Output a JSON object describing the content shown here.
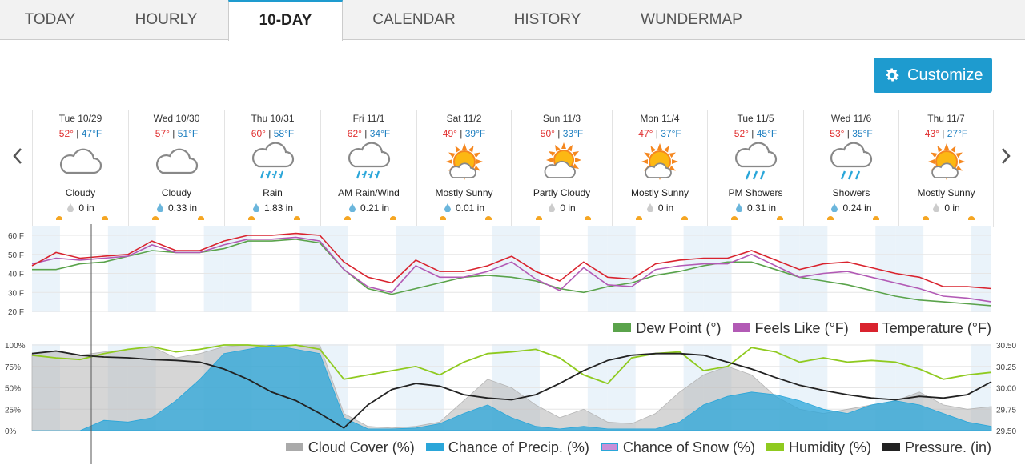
{
  "tabs": [
    {
      "label": "TODAY"
    },
    {
      "label": "HOURLY"
    },
    {
      "label": "10-DAY"
    },
    {
      "label": "CALENDAR"
    },
    {
      "label": "HISTORY"
    },
    {
      "label": "WUNDERMAP"
    }
  ],
  "active_tab": "10-DAY",
  "customize_label": "Customize",
  "days": [
    {
      "date": "Tue 10/29",
      "hi": "52°",
      "lo": "47°F",
      "icon": "cloudy-icon",
      "cond": "Cloudy",
      "precip": "0 in"
    },
    {
      "date": "Wed 10/30",
      "hi": "57°",
      "lo": "51°F",
      "icon": "cloudy-icon",
      "cond": "Cloudy",
      "precip": "0.33 in"
    },
    {
      "date": "Thu 10/31",
      "hi": "60°",
      "lo": "58°F",
      "icon": "rain-icon",
      "cond": "Rain",
      "precip": "1.83 in"
    },
    {
      "date": "Fri 11/1",
      "hi": "62°",
      "lo": "34°F",
      "icon": "rain-icon",
      "cond": "AM Rain/Wind",
      "precip": "0.21 in"
    },
    {
      "date": "Sat 11/2",
      "hi": "49°",
      "lo": "39°F",
      "icon": "mostly-sunny-icon",
      "cond": "Mostly Sunny",
      "precip": "0.01 in"
    },
    {
      "date": "Sun 11/3",
      "hi": "50°",
      "lo": "33°F",
      "icon": "partly-cloudy-icon",
      "cond": "Partly Cloudy",
      "precip": "0 in"
    },
    {
      "date": "Mon 11/4",
      "hi": "47°",
      "lo": "37°F",
      "icon": "mostly-sunny-icon",
      "cond": "Mostly Sunny",
      "precip": "0 in"
    },
    {
      "date": "Tue 11/5",
      "hi": "52°",
      "lo": "45°F",
      "icon": "showers-icon",
      "cond": "PM Showers",
      "precip": "0.31 in"
    },
    {
      "date": "Wed 11/6",
      "hi": "53°",
      "lo": "35°F",
      "icon": "showers-icon",
      "cond": "Showers",
      "precip": "0.24 in"
    },
    {
      "date": "Thu 11/7",
      "hi": "43°",
      "lo": "27°F",
      "icon": "mostly-sunny-icon",
      "cond": "Mostly Sunny",
      "precip": "0 in"
    }
  ],
  "colors": {
    "temperature": "#d9232e",
    "feels_like": "#b25ab5",
    "dew_point": "#5aa34b",
    "cloud_cover": "#aaaaaa",
    "precip": "#2aa6d9",
    "snow": "#c990d8",
    "humidity": "#8fca1f",
    "pressure": "#222222",
    "accent": "#1e9bcf"
  },
  "legend_top": [
    {
      "label": "Dew Point (°)",
      "color": "#5aa34b"
    },
    {
      "label": "Feels Like (°F)",
      "color": "#b25ab5"
    },
    {
      "label": "Temperature (°F)",
      "color": "#d9232e"
    }
  ],
  "legend_bottom": [
    {
      "label": "Cloud Cover (%)",
      "color": "#aaaaaa"
    },
    {
      "label": "Chance of Precip. (%)",
      "color": "#2aa6d9"
    },
    {
      "label": "Chance of Snow (%)",
      "color": "#c990d8"
    },
    {
      "label": "Humidity (%)",
      "color": "#8fca1f"
    },
    {
      "label": "Pressure. (in)",
      "color": "#222222"
    }
  ],
  "chart_data": [
    {
      "type": "line",
      "ylim": [
        20,
        60
      ],
      "yticks": [
        "60 F",
        "50 F",
        "40 F",
        "30 F",
        "20 F"
      ],
      "x_unit": "hours from Tue 10/29 00:00",
      "series": [
        {
          "name": "Temperature (°F)",
          "x": [
            0,
            6,
            12,
            18,
            24,
            30,
            36,
            42,
            48,
            54,
            60,
            66,
            72,
            78,
            84,
            90,
            96,
            102,
            108,
            114,
            120,
            126,
            132,
            138,
            144,
            150,
            156,
            162,
            168,
            174,
            180,
            186,
            192,
            198,
            204,
            210,
            216,
            222,
            228,
            234,
            240
          ],
          "values": [
            44,
            51,
            48,
            49,
            50,
            57,
            52,
            52,
            57,
            60,
            60,
            61,
            60,
            46,
            38,
            35,
            47,
            41,
            41,
            44,
            49,
            41,
            36,
            46,
            38,
            37,
            45,
            47,
            48,
            48,
            52,
            47,
            42,
            45,
            46,
            43,
            40,
            38,
            33,
            33,
            32
          ]
        },
        {
          "name": "Feels Like (°F)",
          "x": [
            0,
            6,
            12,
            18,
            24,
            30,
            36,
            42,
            48,
            54,
            60,
            66,
            72,
            78,
            84,
            90,
            96,
            102,
            108,
            114,
            120,
            126,
            132,
            138,
            144,
            150,
            156,
            162,
            168,
            174,
            180,
            186,
            192,
            198,
            204,
            210,
            216,
            222,
            228,
            234,
            240
          ],
          "values": [
            45,
            48,
            47,
            48,
            49,
            55,
            51,
            51,
            55,
            58,
            58,
            59,
            57,
            42,
            33,
            30,
            44,
            38,
            38,
            41,
            46,
            37,
            31,
            43,
            34,
            33,
            42,
            44,
            45,
            45,
            50,
            44,
            38,
            40,
            41,
            38,
            35,
            32,
            28,
            27,
            25
          ]
        },
        {
          "name": "Dew Point (°)",
          "x": [
            0,
            6,
            12,
            18,
            24,
            30,
            36,
            42,
            48,
            54,
            60,
            66,
            72,
            78,
            84,
            90,
            96,
            102,
            108,
            114,
            120,
            126,
            132,
            138,
            144,
            150,
            156,
            162,
            168,
            174,
            180,
            186,
            192,
            198,
            204,
            210,
            216,
            222,
            228,
            234,
            240
          ],
          "values": [
            42,
            42,
            45,
            46,
            49,
            52,
            51,
            51,
            53,
            57,
            57,
            58,
            56,
            42,
            32,
            29,
            32,
            35,
            38,
            39,
            38,
            36,
            32,
            30,
            33,
            35,
            39,
            41,
            44,
            46,
            46,
            42,
            38,
            36,
            34,
            31,
            28,
            26,
            25,
            24,
            23
          ]
        }
      ]
    },
    {
      "type": "area",
      "ylim": [
        0,
        100
      ],
      "yticks": [
        "100%",
        "75%",
        "50%",
        "25%",
        "0%"
      ],
      "y2lim": [
        29.5,
        30.5
      ],
      "y2ticks": [
        "30.50",
        "30.25",
        "30.00",
        "29.75",
        "29.50"
      ],
      "x_unit": "hours from Tue 10/29 00:00",
      "series": [
        {
          "name": "Cloud Cover (%)",
          "x": [
            0,
            6,
            12,
            18,
            24,
            30,
            36,
            42,
            48,
            54,
            60,
            66,
            72,
            78,
            84,
            90,
            96,
            102,
            108,
            114,
            120,
            126,
            132,
            138,
            144,
            150,
            156,
            162,
            168,
            174,
            180,
            186,
            192,
            198,
            204,
            210,
            216,
            222,
            228,
            234,
            240
          ],
          "values": [
            90,
            92,
            88,
            92,
            95,
            98,
            85,
            90,
            98,
            100,
            100,
            100,
            100,
            20,
            5,
            3,
            5,
            10,
            35,
            60,
            50,
            30,
            15,
            25,
            10,
            8,
            20,
            45,
            65,
            75,
            65,
            40,
            25,
            20,
            25,
            30,
            35,
            45,
            30,
            25,
            28
          ]
        },
        {
          "name": "Chance of Precip. (%)",
          "x": [
            0,
            6,
            12,
            18,
            24,
            30,
            36,
            42,
            48,
            54,
            60,
            66,
            72,
            78,
            84,
            90,
            96,
            102,
            108,
            114,
            120,
            126,
            132,
            138,
            144,
            150,
            156,
            162,
            168,
            174,
            180,
            186,
            192,
            198,
            204,
            210,
            216,
            222,
            228,
            234,
            240
          ],
          "values": [
            0,
            0,
            0,
            12,
            10,
            15,
            35,
            60,
            90,
            95,
            100,
            95,
            90,
            15,
            2,
            2,
            3,
            8,
            20,
            30,
            15,
            5,
            2,
            5,
            2,
            2,
            2,
            10,
            30,
            40,
            45,
            42,
            35,
            25,
            20,
            30,
            35,
            30,
            20,
            10,
            5
          ]
        },
        {
          "name": "Chance of Snow (%)",
          "x": [
            0,
            240
          ],
          "values": [
            0,
            0
          ]
        },
        {
          "name": "Humidity (%)",
          "x": [
            0,
            6,
            12,
            18,
            24,
            30,
            36,
            42,
            48,
            54,
            60,
            66,
            72,
            78,
            84,
            90,
            96,
            102,
            108,
            114,
            120,
            126,
            132,
            138,
            144,
            150,
            156,
            162,
            168,
            174,
            180,
            186,
            192,
            198,
            204,
            210,
            216,
            222,
            228,
            234,
            240
          ],
          "values": [
            88,
            85,
            83,
            90,
            95,
            98,
            92,
            95,
            100,
            100,
            98,
            100,
            95,
            60,
            65,
            70,
            75,
            65,
            80,
            90,
            92,
            95,
            85,
            65,
            55,
            85,
            90,
            92,
            70,
            75,
            97,
            92,
            80,
            85,
            80,
            82,
            80,
            72,
            60,
            65,
            68
          ]
        },
        {
          "name": "Pressure. (in)",
          "x": [
            0,
            6,
            12,
            18,
            24,
            30,
            36,
            42,
            48,
            54,
            60,
            66,
            72,
            78,
            84,
            90,
            96,
            102,
            108,
            114,
            120,
            126,
            132,
            138,
            144,
            150,
            156,
            162,
            168,
            174,
            180,
            186,
            192,
            198,
            204,
            210,
            216,
            222,
            228,
            234,
            240
          ],
          "values": [
            30.4,
            30.43,
            30.38,
            30.36,
            30.35,
            30.33,
            30.32,
            30.3,
            30.22,
            30.1,
            29.95,
            29.85,
            29.7,
            29.53,
            29.8,
            29.98,
            30.05,
            30.02,
            29.92,
            29.88,
            29.86,
            29.92,
            30.05,
            30.2,
            30.32,
            30.38,
            30.4,
            30.4,
            30.38,
            30.3,
            30.22,
            30.12,
            30.03,
            29.97,
            29.92,
            29.88,
            29.86,
            29.9,
            29.88,
            29.92,
            30.07
          ]
        }
      ]
    }
  ]
}
